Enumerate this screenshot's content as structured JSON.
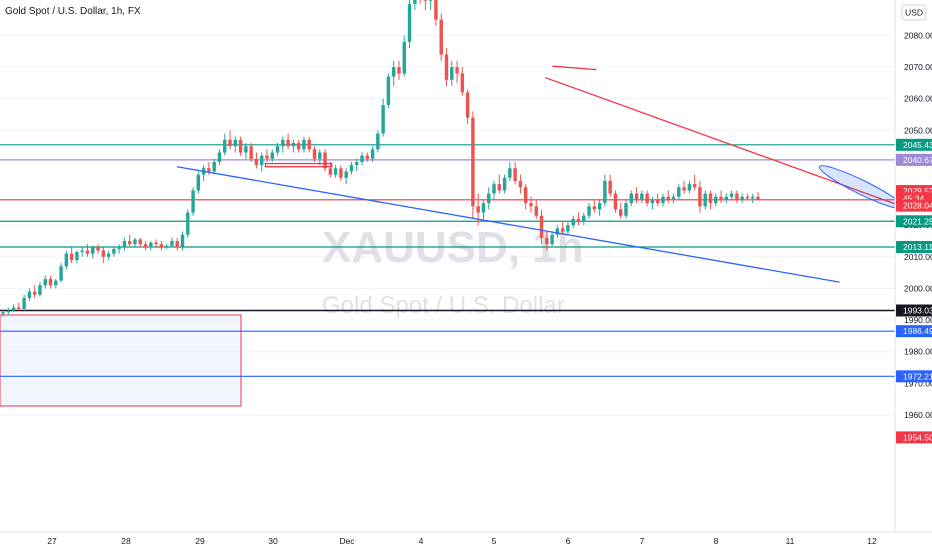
{
  "header": {
    "symbol_title": "Gold Spot / U.S. Dollar, 1h, FX"
  },
  "watermark": {
    "ticker": "XAUUSD, 1h",
    "name": "Gold Spot / U.S. Dollar"
  },
  "currency_button": "USD",
  "colors": {
    "up": "#26a69a",
    "down": "#ef5350",
    "blue": "#2962ff",
    "purple": "#9c8ad8",
    "red": "#f23645",
    "green": "#089981",
    "black": "#131722"
  },
  "chart_data": {
    "type": "candlestick",
    "title": "Gold Spot / U.S. Dollar, 1h, FX",
    "currency": "USD",
    "ylim": [
      1950,
      2100
    ],
    "y_ticks": [
      1960,
      1970,
      1980,
      1990,
      2000,
      2010,
      2020,
      2050,
      2060,
      2070,
      2080
    ],
    "y_tick_labels": [
      "1960.00",
      "1970.00",
      "1980.00",
      "1990.00",
      "2000.00",
      "2010.00",
      "2020.00",
      "2050.00",
      "2060.00",
      "2070.00",
      "2080.00"
    ],
    "x_ticks": [
      "27",
      "28",
      "29",
      "30",
      "Dec",
      "4",
      "5",
      "6",
      "7",
      "8",
      "11",
      "12"
    ],
    "price_labels": [
      {
        "value": "2045.43",
        "style": "green"
      },
      {
        "value": "2040.67",
        "style": "purple"
      },
      {
        "value": "2029.52",
        "style": "red"
      },
      {
        "value": "45:34",
        "style": "red"
      },
      {
        "value": "2028.04",
        "style": "red"
      },
      {
        "value": "2021.25",
        "style": "green"
      },
      {
        "value": "2013.11",
        "style": "green"
      },
      {
        "value": "1993.03",
        "style": "black"
      },
      {
        "value": "1986.49",
        "style": "blue"
      },
      {
        "value": "1972.21",
        "style": "blue"
      },
      {
        "value": "1954.50",
        "style": "red"
      }
    ],
    "horizontal_levels": [
      {
        "price": 2045.43,
        "color": "green"
      },
      {
        "price": 2040.67,
        "color": "purple"
      },
      {
        "price": 2028.04,
        "color": "red"
      },
      {
        "price": 2021.25,
        "color": "green"
      },
      {
        "price": 2013.11,
        "color": "green"
      },
      {
        "price": 1993.03,
        "color": "black"
      },
      {
        "price": 1986.49,
        "color": "blue"
      },
      {
        "price": 1972.21,
        "color": "blue"
      }
    ],
    "trendlines": [
      {
        "color": "blue",
        "from": {
          "day": 28.7,
          "price": 2038.5
        },
        "to": {
          "day": 37.7,
          "price": 2002
        }
      },
      {
        "color": "red",
        "from": {
          "day": 33.7,
          "price": 2066.7
        },
        "to": {
          "day": 38.9,
          "price": 2023
        }
      }
    ],
    "candles": [
      {
        "o": 1992,
        "h": 1993,
        "l": 1991,
        "c": 1992.5
      },
      {
        "o": 1992.5,
        "h": 1994,
        "l": 1991.5,
        "c": 1993
      },
      {
        "o": 1993,
        "h": 1995,
        "l": 1992.5,
        "c": 1994
      },
      {
        "o": 1994,
        "h": 1995.5,
        "l": 1993,
        "c": 1993.5
      },
      {
        "o": 1993.5,
        "h": 1998,
        "l": 1993,
        "c": 1997
      },
      {
        "o": 1997,
        "h": 2000,
        "l": 1996,
        "c": 1999
      },
      {
        "o": 1999,
        "h": 2001,
        "l": 1997,
        "c": 1998
      },
      {
        "o": 1998,
        "h": 2002,
        "l": 1997.5,
        "c": 2001
      },
      {
        "o": 2001,
        "h": 2004,
        "l": 2000,
        "c": 2003
      },
      {
        "o": 2003,
        "h": 2004,
        "l": 2000,
        "c": 2001
      },
      {
        "o": 2001,
        "h": 2003,
        "l": 2000,
        "c": 2002.5
      },
      {
        "o": 2002.5,
        "h": 2008,
        "l": 2002,
        "c": 2007
      },
      {
        "o": 2007,
        "h": 2012,
        "l": 2006,
        "c": 2011
      },
      {
        "o": 2011,
        "h": 2013,
        "l": 2008,
        "c": 2009
      },
      {
        "o": 2009,
        "h": 2012,
        "l": 2008,
        "c": 2011.5
      },
      {
        "o": 2011.5,
        "h": 2013,
        "l": 2010,
        "c": 2012
      },
      {
        "o": 2012,
        "h": 2014,
        "l": 2010,
        "c": 2011
      },
      {
        "o": 2011,
        "h": 2013.5,
        "l": 2009.5,
        "c": 2013
      },
      {
        "o": 2013,
        "h": 2014,
        "l": 2011,
        "c": 2012
      },
      {
        "o": 2012,
        "h": 2013,
        "l": 2008,
        "c": 2010
      },
      {
        "o": 2010,
        "h": 2012,
        "l": 2009,
        "c": 2011
      },
      {
        "o": 2011,
        "h": 2013,
        "l": 2010,
        "c": 2012.5
      },
      {
        "o": 2012.5,
        "h": 2014,
        "l": 2011,
        "c": 2013
      },
      {
        "o": 2013,
        "h": 2016,
        "l": 2012,
        "c": 2015
      },
      {
        "o": 2015,
        "h": 2017,
        "l": 2013,
        "c": 2014
      },
      {
        "o": 2014,
        "h": 2016,
        "l": 2013,
        "c": 2015.5
      },
      {
        "o": 2015.5,
        "h": 2016,
        "l": 2013,
        "c": 2014
      },
      {
        "o": 2014,
        "h": 2015,
        "l": 2012,
        "c": 2013
      },
      {
        "o": 2013,
        "h": 2015,
        "l": 2012,
        "c": 2014.5
      },
      {
        "o": 2014.5,
        "h": 2015.5,
        "l": 2013,
        "c": 2014
      },
      {
        "o": 2014,
        "h": 2015,
        "l": 2012,
        "c": 2013
      },
      {
        "o": 2013,
        "h": 2014,
        "l": 2012.5,
        "c": 2013.5
      },
      {
        "o": 2013.5,
        "h": 2016,
        "l": 2013,
        "c": 2015
      },
      {
        "o": 2015,
        "h": 2016,
        "l": 2012,
        "c": 2013
      },
      {
        "o": 2013,
        "h": 2018,
        "l": 2012,
        "c": 2017
      },
      {
        "o": 2017,
        "h": 2025,
        "l": 2016,
        "c": 2024
      },
      {
        "o": 2024,
        "h": 2032,
        "l": 2023,
        "c": 2031
      },
      {
        "o": 2031,
        "h": 2037,
        "l": 2030,
        "c": 2036
      },
      {
        "o": 2036,
        "h": 2039,
        "l": 2034,
        "c": 2038
      },
      {
        "o": 2038,
        "h": 2040,
        "l": 2036,
        "c": 2037
      },
      {
        "o": 2037,
        "h": 2041,
        "l": 2036,
        "c": 2040
      },
      {
        "o": 2040,
        "h": 2044,
        "l": 2039,
        "c": 2043
      },
      {
        "o": 2043,
        "h": 2049,
        "l": 2042,
        "c": 2047
      },
      {
        "o": 2047,
        "h": 2050,
        "l": 2044,
        "c": 2045
      },
      {
        "o": 2045,
        "h": 2048,
        "l": 2043,
        "c": 2047
      },
      {
        "o": 2047,
        "h": 2048,
        "l": 2042,
        "c": 2043
      },
      {
        "o": 2043,
        "h": 2046,
        "l": 2041,
        "c": 2045
      },
      {
        "o": 2045,
        "h": 2046,
        "l": 2040,
        "c": 2041
      },
      {
        "o": 2041,
        "h": 2043,
        "l": 2038,
        "c": 2039
      },
      {
        "o": 2039,
        "h": 2043,
        "l": 2037,
        "c": 2042
      },
      {
        "o": 2042,
        "h": 2044,
        "l": 2040,
        "c": 2041
      },
      {
        "o": 2041,
        "h": 2044,
        "l": 2040,
        "c": 2043
      },
      {
        "o": 2043,
        "h": 2046,
        "l": 2042,
        "c": 2045
      },
      {
        "o": 2045,
        "h": 2048,
        "l": 2043,
        "c": 2047
      },
      {
        "o": 2047,
        "h": 2049,
        "l": 2044,
        "c": 2045
      },
      {
        "o": 2045,
        "h": 2047,
        "l": 2043,
        "c": 2046
      },
      {
        "o": 2046,
        "h": 2047,
        "l": 2043,
        "c": 2044
      },
      {
        "o": 2044,
        "h": 2048,
        "l": 2043,
        "c": 2047
      },
      {
        "o": 2047,
        "h": 2048,
        "l": 2043,
        "c": 2044
      },
      {
        "o": 2044,
        "h": 2045,
        "l": 2040,
        "c": 2041
      },
      {
        "o": 2041,
        "h": 2044,
        "l": 2039,
        "c": 2043
      },
      {
        "o": 2043,
        "h": 2044,
        "l": 2037,
        "c": 2038
      },
      {
        "o": 2038,
        "h": 2040,
        "l": 2035,
        "c": 2036
      },
      {
        "o": 2036,
        "h": 2039,
        "l": 2035,
        "c": 2038
      },
      {
        "o": 2038,
        "h": 2039,
        "l": 2034,
        "c": 2035
      },
      {
        "o": 2035,
        "h": 2038,
        "l": 2033,
        "c": 2037
      },
      {
        "o": 2037,
        "h": 2040,
        "l": 2036,
        "c": 2039
      },
      {
        "o": 2039,
        "h": 2041,
        "l": 2037,
        "c": 2040
      },
      {
        "o": 2040,
        "h": 2043,
        "l": 2039,
        "c": 2042
      },
      {
        "o": 2042,
        "h": 2043,
        "l": 2040,
        "c": 2041
      },
      {
        "o": 2041,
        "h": 2045,
        "l": 2040,
        "c": 2044
      },
      {
        "o": 2044,
        "h": 2050,
        "l": 2043,
        "c": 2049
      },
      {
        "o": 2049,
        "h": 2060,
        "l": 2048,
        "c": 2058
      },
      {
        "o": 2058,
        "h": 2068,
        "l": 2057,
        "c": 2067
      },
      {
        "o": 2067,
        "h": 2072,
        "l": 2064,
        "c": 2070
      },
      {
        "o": 2070,
        "h": 2072,
        "l": 2066,
        "c": 2068
      },
      {
        "o": 2068,
        "h": 2080,
        "l": 2067,
        "c": 2078
      },
      {
        "o": 2078,
        "h": 2092,
        "l": 2076,
        "c": 2090
      },
      {
        "o": 2090,
        "h": 2100,
        "l": 2088,
        "c": 2098
      },
      {
        "o": 2098,
        "h": 2100,
        "l": 2090,
        "c": 2093
      },
      {
        "o": 2093,
        "h": 2097,
        "l": 2088,
        "c": 2091
      },
      {
        "o": 2091,
        "h": 2096,
        "l": 2088,
        "c": 2094
      },
      {
        "o": 2094,
        "h": 2095,
        "l": 2083,
        "c": 2085
      },
      {
        "o": 2085,
        "h": 2087,
        "l": 2072,
        "c": 2074
      },
      {
        "o": 2074,
        "h": 2076,
        "l": 2064,
        "c": 2066
      },
      {
        "o": 2066,
        "h": 2072,
        "l": 2064,
        "c": 2070
      },
      {
        "o": 2070,
        "h": 2072,
        "l": 2065,
        "c": 2068
      },
      {
        "o": 2068,
        "h": 2070,
        "l": 2061,
        "c": 2062
      },
      {
        "o": 2062,
        "h": 2063,
        "l": 2052,
        "c": 2054
      },
      {
        "o": 2054,
        "h": 2056,
        "l": 2022,
        "c": 2026
      },
      {
        "o": 2026,
        "h": 2030,
        "l": 2020,
        "c": 2024
      },
      {
        "o": 2024,
        "h": 2028,
        "l": 2022,
        "c": 2027
      },
      {
        "o": 2027,
        "h": 2032,
        "l": 2025,
        "c": 2030
      },
      {
        "o": 2030,
        "h": 2034,
        "l": 2028,
        "c": 2033
      },
      {
        "o": 2033,
        "h": 2036,
        "l": 2030,
        "c": 2031
      },
      {
        "o": 2031,
        "h": 2036,
        "l": 2030,
        "c": 2035
      },
      {
        "o": 2035,
        "h": 2040,
        "l": 2034,
        "c": 2038
      },
      {
        "o": 2038,
        "h": 2040,
        "l": 2033,
        "c": 2034
      },
      {
        "o": 2034,
        "h": 2036,
        "l": 2030,
        "c": 2032
      },
      {
        "o": 2032,
        "h": 2033,
        "l": 2025,
        "c": 2027
      },
      {
        "o": 2027,
        "h": 2029,
        "l": 2024,
        "c": 2026
      },
      {
        "o": 2026,
        "h": 2028,
        "l": 2022,
        "c": 2023
      },
      {
        "o": 2023,
        "h": 2025,
        "l": 2014,
        "c": 2016
      },
      {
        "o": 2016,
        "h": 2018,
        "l": 2012,
        "c": 2014
      },
      {
        "o": 2014,
        "h": 2018,
        "l": 2013,
        "c": 2017
      },
      {
        "o": 2017,
        "h": 2020,
        "l": 2016,
        "c": 2019
      },
      {
        "o": 2019,
        "h": 2021,
        "l": 2017,
        "c": 2018
      },
      {
        "o": 2018,
        "h": 2021,
        "l": 2017,
        "c": 2020
      },
      {
        "o": 2020,
        "h": 2023,
        "l": 2019,
        "c": 2022
      },
      {
        "o": 2022,
        "h": 2024,
        "l": 2020,
        "c": 2021
      },
      {
        "o": 2021,
        "h": 2024,
        "l": 2020,
        "c": 2023
      },
      {
        "o": 2023,
        "h": 2027,
        "l": 2022,
        "c": 2026
      },
      {
        "o": 2026,
        "h": 2028,
        "l": 2024,
        "c": 2025
      },
      {
        "o": 2025,
        "h": 2028,
        "l": 2023,
        "c": 2027
      },
      {
        "o": 2027,
        "h": 2036,
        "l": 2026,
        "c": 2034
      },
      {
        "o": 2034,
        "h": 2036,
        "l": 2029,
        "c": 2030
      },
      {
        "o": 2030,
        "h": 2031,
        "l": 2024,
        "c": 2025
      },
      {
        "o": 2025,
        "h": 2027,
        "l": 2022,
        "c": 2023
      },
      {
        "o": 2023,
        "h": 2028,
        "l": 2022,
        "c": 2027
      },
      {
        "o": 2027,
        "h": 2031,
        "l": 2026,
        "c": 2030
      },
      {
        "o": 2030,
        "h": 2032,
        "l": 2027,
        "c": 2028
      },
      {
        "o": 2028,
        "h": 2031,
        "l": 2027,
        "c": 2030
      },
      {
        "o": 2030,
        "h": 2031,
        "l": 2026,
        "c": 2027
      },
      {
        "o": 2027,
        "h": 2029,
        "l": 2025,
        "c": 2028
      },
      {
        "o": 2028,
        "h": 2030,
        "l": 2026,
        "c": 2027
      },
      {
        "o": 2027,
        "h": 2030,
        "l": 2026,
        "c": 2029
      },
      {
        "o": 2029,
        "h": 2031,
        "l": 2027,
        "c": 2028
      },
      {
        "o": 2028,
        "h": 2030,
        "l": 2027,
        "c": 2029
      },
      {
        "o": 2029,
        "h": 2033,
        "l": 2028,
        "c": 2032
      },
      {
        "o": 2032,
        "h": 2034,
        "l": 2030,
        "c": 2031
      },
      {
        "o": 2031,
        "h": 2034,
        "l": 2030,
        "c": 2033
      },
      {
        "o": 2033,
        "h": 2036,
        "l": 2031,
        "c": 2032
      },
      {
        "o": 2032,
        "h": 2034,
        "l": 2024,
        "c": 2026
      },
      {
        "o": 2026,
        "h": 2031,
        "l": 2025,
        "c": 2030
      },
      {
        "o": 2030,
        "h": 2031,
        "l": 2025,
        "c": 2027
      },
      {
        "o": 2027,
        "h": 2030,
        "l": 2026,
        "c": 2029
      },
      {
        "o": 2029,
        "h": 2031,
        "l": 2027,
        "c": 2028
      },
      {
        "o": 2028,
        "h": 2030,
        "l": 2027,
        "c": 2029
      },
      {
        "o": 2029,
        "h": 2031,
        "l": 2028,
        "c": 2030
      },
      {
        "o": 2030,
        "h": 2031,
        "l": 2027,
        "c": 2028
      },
      {
        "o": 2028,
        "h": 2030,
        "l": 2027,
        "c": 2029
      },
      {
        "o": 2029,
        "h": 2030,
        "l": 2028,
        "c": 2028.5
      },
      {
        "o": 2028.5,
        "h": 2030,
        "l": 2027,
        "c": 2029
      },
      {
        "o": 2029,
        "h": 2030.5,
        "l": 2028,
        "c": 2028
      }
    ]
  }
}
